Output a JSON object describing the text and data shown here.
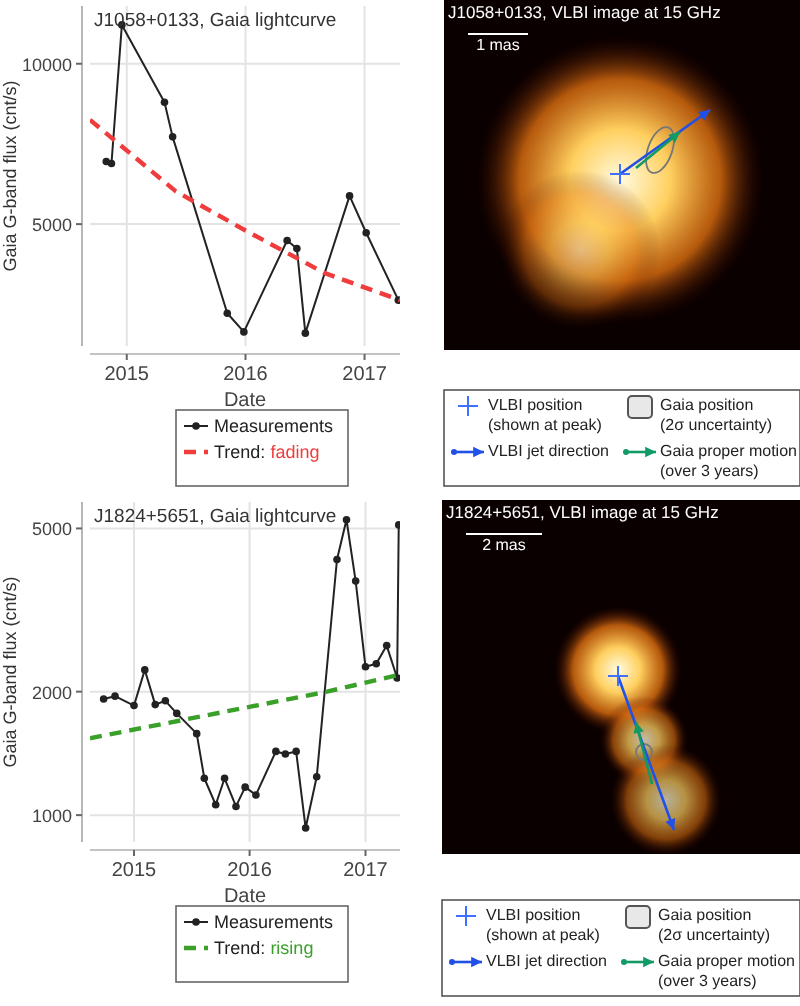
{
  "chart_data": [
    {
      "type": "line",
      "title": "J1058+0133, Gaia lightcurve",
      "xlabel": "Date",
      "ylabel": "Gaia G-band flux (cnt/s)",
      "xlim": [
        "2014-09-10",
        "2017-04-20"
      ],
      "xticks": [
        {
          "value": "2015-01-01",
          "label": "2015"
        },
        {
          "value": "2016-01-01",
          "label": "2016"
        },
        {
          "value": "2017-01-01",
          "label": "2017"
        }
      ],
      "ylim": [
        1200,
        11800
      ],
      "yticks": [
        5000,
        10000
      ],
      "grid": true,
      "legend": "bottom",
      "series": [
        {
          "name": "Measurements",
          "color": "#222222",
          "marker": "circle",
          "line_style": "solid",
          "x": [
            "2014-10-30",
            "2014-11-15",
            "2014-12-17",
            "2015-04-27",
            "2015-05-22",
            "2015-11-06",
            "2015-12-27",
            "2016-05-08",
            "2016-06-07",
            "2016-07-03",
            "2016-11-16",
            "2017-01-06",
            "2017-04-15"
          ],
          "values": [
            6950,
            6890,
            11210,
            8800,
            7720,
            2220,
            1640,
            4490,
            4240,
            1600,
            5880,
            4730,
            2630
          ]
        },
        {
          "name": "Trend: fading",
          "color": "#f03c3c",
          "marker": "none",
          "line_style": "dashed",
          "x": [
            "2014-09-10",
            "2015-06-01",
            "2016-01-01",
            "2016-09-01",
            "2017-04-20"
          ],
          "values": [
            8250,
            6020,
            4800,
            3470,
            2630
          ]
        }
      ]
    },
    {
      "type": "other",
      "title": "J1058+0133, VLBI image at 15 GHz",
      "annotations": [
        "1 mas",
        "VLBI position\n(shown at peak)",
        "VLBI jet direction",
        "Gaia position\n(2σ uncertainty)",
        "Gaia proper motion\n(over 3 years)"
      ]
    },
    {
      "type": "line",
      "title": "J1824+5651, Gaia lightcurve",
      "xlabel": "Date",
      "ylabel": "Gaia G-band flux (cnt/s)",
      "log": true,
      "xlim": [
        "2014-08-15",
        "2017-04-20"
      ],
      "xticks": [
        {
          "value": "2015-01-01",
          "label": "2015"
        },
        {
          "value": "2016-01-01",
          "label": "2016"
        },
        {
          "value": "2017-01-01",
          "label": "2017"
        }
      ],
      "ylim": [
        860,
        5800
      ],
      "yticks": [
        1000,
        2000,
        5000
      ],
      "grid": true,
      "legend": "bottom",
      "series": [
        {
          "name": "Measurements",
          "color": "#222222",
          "marker": "circle",
          "line_style": "solid",
          "x": [
            "2014-09-27",
            "2014-11-02",
            "2015-01-01",
            "2015-02-04",
            "2015-03-09",
            "2015-04-10",
            "2015-05-16",
            "2015-07-18",
            "2015-08-11",
            "2015-09-16",
            "2015-10-14",
            "2015-11-19",
            "2015-12-18",
            "2016-01-21",
            "2016-03-24",
            "2016-04-23",
            "2016-05-27",
            "2016-06-26",
            "2016-07-31",
            "2016-10-03",
            "2016-11-02",
            "2016-12-01",
            "2017-01-01",
            "2017-02-04",
            "2017-03-09",
            "2017-04-11",
            "2017-04-16"
          ],
          "values": [
            1920,
            1950,
            1850,
            2260,
            1860,
            1900,
            1770,
            1580,
            1230,
            1060,
            1230,
            1050,
            1170,
            1120,
            1430,
            1410,
            1430,
            930,
            1240,
            4200,
            5250,
            3720,
            2300,
            2340,
            2590,
            2160,
            5100
          ]
        },
        {
          "name": "Trend: rising",
          "color": "#3aa02a",
          "marker": "none",
          "line_style": "dashed",
          "x": [
            "2014-08-15",
            "2016-09-01",
            "2017-04-20"
          ],
          "values": [
            1540,
            2000,
            2200
          ]
        }
      ]
    },
    {
      "type": "other",
      "title": "J1824+5651, VLBI image at 15 GHz",
      "annotations": [
        "2 mas",
        "VLBI position\n(shown at peak)",
        "VLBI jet direction",
        "Gaia position\n(2σ uncertainty)",
        "Gaia proper motion\n(over 3 years)"
      ]
    }
  ]
}
